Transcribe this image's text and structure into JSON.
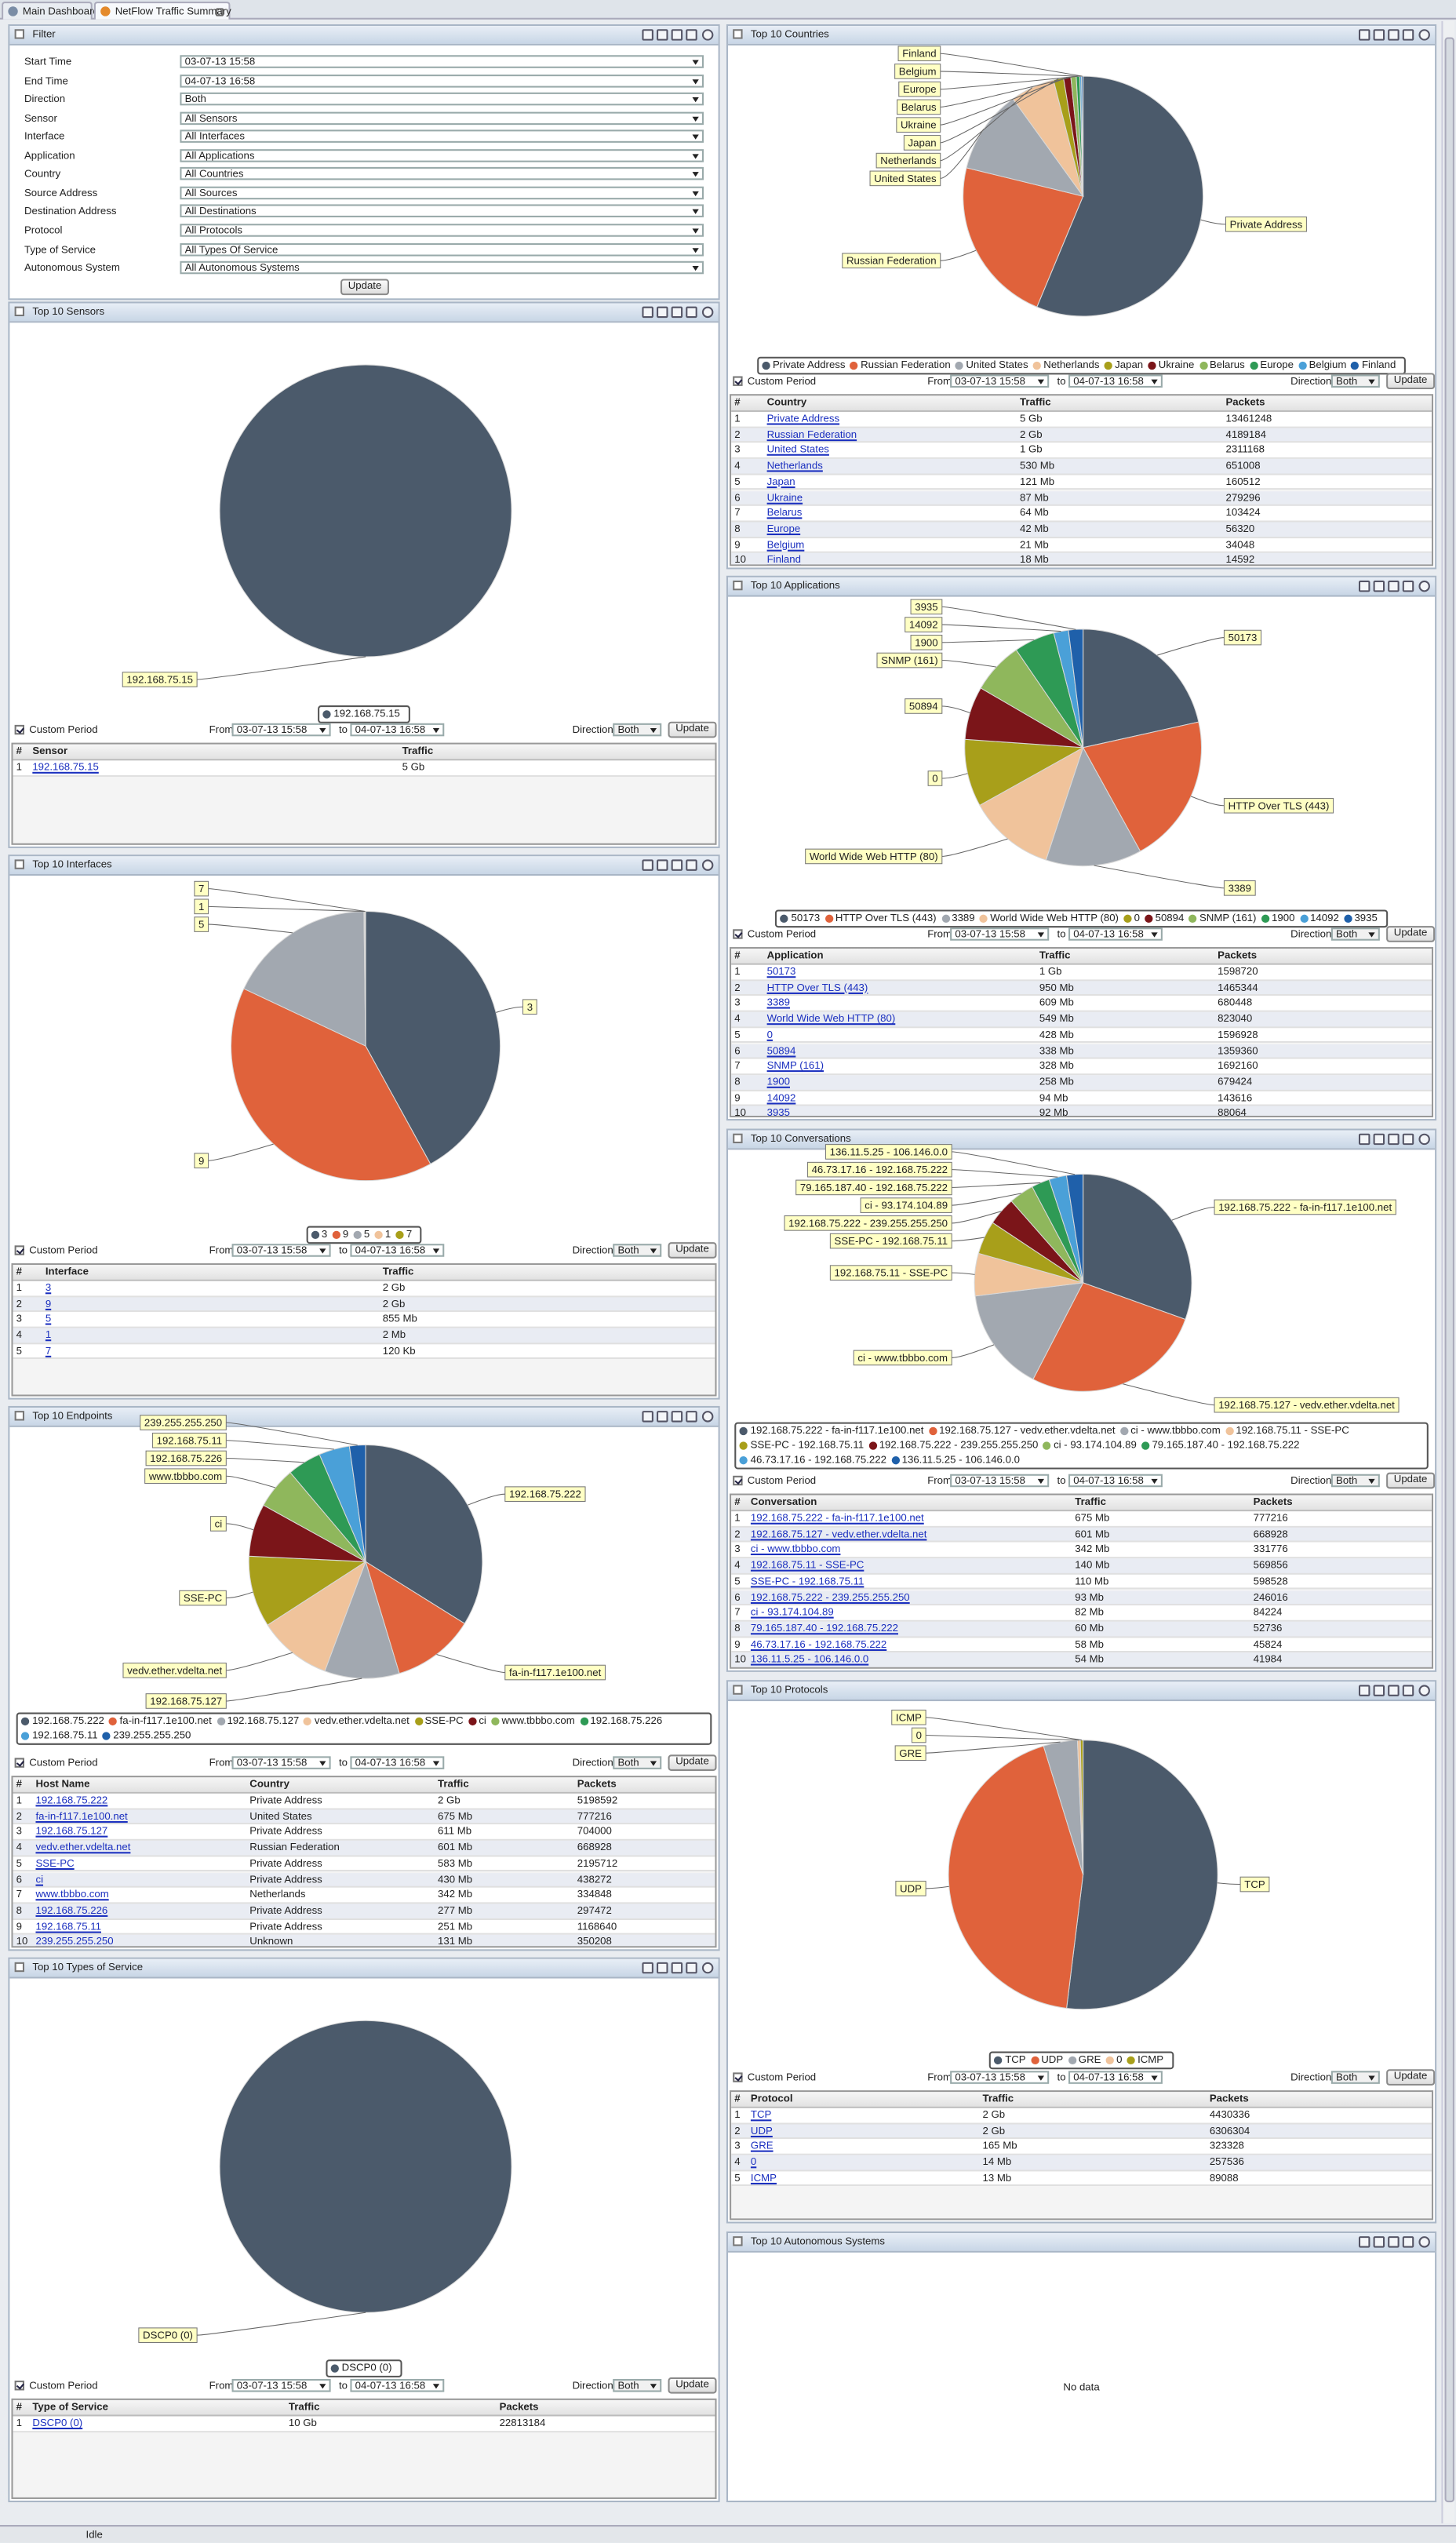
{
  "tabs": [
    "Main Dashboard",
    "NetFlow Traffic Summary"
  ],
  "status": "Idle",
  "period_controls": {
    "custom": "Custom Period",
    "from_label": "From",
    "from": "03-07-13 15:58",
    "to_label": "to",
    "to": "04-07-13 16:58",
    "direction_label": "Direction",
    "direction": "Both",
    "button": "Update"
  },
  "filter": {
    "title": "Filter",
    "rows": [
      {
        "label": "Start Time",
        "value": "03-07-13 15:58"
      },
      {
        "label": "End Time",
        "value": "04-07-13 16:58"
      },
      {
        "label": "Direction",
        "value": "Both"
      },
      {
        "label": "Sensor",
        "value": "All Sensors"
      },
      {
        "label": "Interface",
        "value": "All Interfaces"
      },
      {
        "label": "Application",
        "value": "All Applications"
      },
      {
        "label": "Country",
        "value": "All Countries"
      },
      {
        "label": "Source Address",
        "value": "All Sources"
      },
      {
        "label": "Destination Address",
        "value": "All Destinations"
      },
      {
        "label": "Protocol",
        "value": "All Protocols"
      },
      {
        "label": "Type of Service",
        "value": "All Types Of Service"
      },
      {
        "label": "Autonomous System",
        "value": "All Autonomous Systems"
      }
    ],
    "button": "Update"
  },
  "panels": [
    {
      "title": "Top 10 Sensors",
      "slices": [
        {
          "name": "192.168.75.15",
          "value": 100,
          "color": "#4b5a6b"
        }
      ],
      "table": {
        "columns": [
          "#",
          "Sensor",
          "Traffic"
        ],
        "rows": [
          [
            "1",
            "192.168.75.15",
            "5 Gb"
          ]
        ]
      }
    },
    {
      "title": "Top 10 Interfaces",
      "slices": [
        {
          "name": "3",
          "value": 42,
          "color": "#4b5a6b"
        },
        {
          "name": "9",
          "value": 40,
          "color": "#e0623b"
        },
        {
          "name": "5",
          "value": 17.8,
          "color": "#a2a8b0"
        },
        {
          "name": "1",
          "value": 0.1,
          "color": "#f0c39b"
        },
        {
          "name": "7",
          "value": 0.1,
          "color": "#a89f1a"
        }
      ],
      "table": {
        "columns": [
          "#",
          "Interface",
          "Traffic"
        ],
        "rows": [
          [
            "1",
            "3",
            "2 Gb"
          ],
          [
            "2",
            "9",
            "2 Gb"
          ],
          [
            "3",
            "5",
            "855 Mb"
          ],
          [
            "4",
            "1",
            "2 Mb"
          ],
          [
            "5",
            "7",
            "120 Kb"
          ]
        ]
      }
    },
    {
      "title": "Top 10 Endpoints",
      "slices": [
        {
          "name": "192.168.75.222",
          "value": 2000,
          "color": "#4b5a6b"
        },
        {
          "name": "fa-in-f117.1e100.net",
          "value": 675,
          "color": "#e0623b"
        },
        {
          "name": "192.168.75.127",
          "value": 611,
          "color": "#a2a8b0"
        },
        {
          "name": "vedv.ether.vdelta.net",
          "value": 601,
          "color": "#f0c39b"
        },
        {
          "name": "SSE-PC",
          "value": 583,
          "color": "#a89f1a"
        },
        {
          "name": "ci",
          "value": 430,
          "color": "#7b1519"
        },
        {
          "name": "www.tbbbo.com",
          "value": 342,
          "color": "#8fb75c"
        },
        {
          "name": "192.168.75.226",
          "value": 277,
          "color": "#2e9a55"
        },
        {
          "name": "192.168.75.11",
          "value": 251,
          "color": "#4aa0d8"
        },
        {
          "name": "239.255.255.250",
          "value": 131,
          "color": "#1f60aa"
        }
      ],
      "table": {
        "columns": [
          "#",
          "Host Name",
          "Country",
          "Traffic",
          "Packets"
        ],
        "rows": [
          [
            "1",
            "192.168.75.222",
            "Private Address",
            "2 Gb",
            "5198592"
          ],
          [
            "2",
            "fa-in-f117.1e100.net",
            "United States",
            "675 Mb",
            "777216"
          ],
          [
            "3",
            "192.168.75.127",
            "Private Address",
            "611 Mb",
            "704000"
          ],
          [
            "4",
            "vedv.ether.vdelta.net",
            "Russian Federation",
            "601 Mb",
            "668928"
          ],
          [
            "5",
            "SSE-PC",
            "Private Address",
            "583 Mb",
            "2195712"
          ],
          [
            "6",
            "ci",
            "Private Address",
            "430 Mb",
            "438272"
          ],
          [
            "7",
            "www.tbbbo.com",
            "Netherlands",
            "342 Mb",
            "334848"
          ],
          [
            "8",
            "192.168.75.226",
            "Private Address",
            "277 Mb",
            "297472"
          ],
          [
            "9",
            "192.168.75.11",
            "Private Address",
            "251 Mb",
            "1168640"
          ],
          [
            "10",
            "239.255.255.250",
            "Unknown",
            "131 Mb",
            "350208"
          ]
        ]
      }
    },
    {
      "title": "Top 10 Types of Service",
      "slices": [
        {
          "name": "DSCP0 (0)",
          "value": 100,
          "color": "#4b5a6b"
        }
      ],
      "table": {
        "columns": [
          "#",
          "Type of Service",
          "Traffic",
          "Packets"
        ],
        "rows": [
          [
            "1",
            "DSCP0 (0)",
            "10 Gb",
            "22813184"
          ]
        ]
      }
    },
    {
      "title": "Top 10 Countries",
      "slices": [
        {
          "name": "Private Address",
          "value": 5000,
          "color": "#4b5a6b"
        },
        {
          "name": "Russian Federation",
          "value": 2000,
          "color": "#e0623b"
        },
        {
          "name": "United States",
          "value": 1000,
          "color": "#a2a8b0"
        },
        {
          "name": "Netherlands",
          "value": 530,
          "color": "#f0c39b"
        },
        {
          "name": "Japan",
          "value": 121,
          "color": "#a89f1a"
        },
        {
          "name": "Ukraine",
          "value": 87,
          "color": "#7b1519"
        },
        {
          "name": "Belarus",
          "value": 64,
          "color": "#8fb75c"
        },
        {
          "name": "Europe",
          "value": 42,
          "color": "#2e9a55"
        },
        {
          "name": "Belgium",
          "value": 21,
          "color": "#4aa0d8"
        },
        {
          "name": "Finland",
          "value": 18,
          "color": "#1f60aa"
        }
      ],
      "table": {
        "columns": [
          "#",
          "Country",
          "Traffic",
          "Packets"
        ],
        "rows": [
          [
            "1",
            "Private Address",
            "5 Gb",
            "13461248"
          ],
          [
            "2",
            "Russian Federation",
            "2 Gb",
            "4189184"
          ],
          [
            "3",
            "United States",
            "1 Gb",
            "2311168"
          ],
          [
            "4",
            "Netherlands",
            "530 Mb",
            "651008"
          ],
          [
            "5",
            "Japan",
            "121 Mb",
            "160512"
          ],
          [
            "6",
            "Ukraine",
            "87 Mb",
            "279296"
          ],
          [
            "7",
            "Belarus",
            "64 Mb",
            "103424"
          ],
          [
            "8",
            "Europe",
            "42 Mb",
            "56320"
          ],
          [
            "9",
            "Belgium",
            "21 Mb",
            "34048"
          ],
          [
            "10",
            "Finland",
            "18 Mb",
            "14592"
          ]
        ]
      }
    },
    {
      "title": "Top 10 Applications",
      "slices": [
        {
          "name": "50173",
          "value": 1000,
          "color": "#4b5a6b"
        },
        {
          "name": "HTTP Over TLS (443)",
          "value": 950,
          "color": "#e0623b"
        },
        {
          "name": "3389",
          "value": 609,
          "color": "#a2a8b0"
        },
        {
          "name": "World Wide Web HTTP (80)",
          "value": 549,
          "color": "#f0c39b"
        },
        {
          "name": "0",
          "value": 428,
          "color": "#a89f1a"
        },
        {
          "name": "50894",
          "value": 338,
          "color": "#7b1519"
        },
        {
          "name": "SNMP (161)",
          "value": 328,
          "color": "#8fb75c"
        },
        {
          "name": "1900",
          "value": 258,
          "color": "#2e9a55"
        },
        {
          "name": "14092",
          "value": 94,
          "color": "#4aa0d8"
        },
        {
          "name": "3935",
          "value": 92,
          "color": "#1f60aa"
        }
      ],
      "table": {
        "columns": [
          "#",
          "Application",
          "Traffic",
          "Packets"
        ],
        "rows": [
          [
            "1",
            "50173",
            "1 Gb",
            "1598720"
          ],
          [
            "2",
            "HTTP Over TLS (443)",
            "950 Mb",
            "1465344"
          ],
          [
            "3",
            "3389",
            "609 Mb",
            "680448"
          ],
          [
            "4",
            "World Wide Web HTTP (80)",
            "549 Mb",
            "823040"
          ],
          [
            "5",
            "0",
            "428 Mb",
            "1596928"
          ],
          [
            "6",
            "50894",
            "338 Mb",
            "1359360"
          ],
          [
            "7",
            "SNMP (161)",
            "328 Mb",
            "1692160"
          ],
          [
            "8",
            "1900",
            "258 Mb",
            "679424"
          ],
          [
            "9",
            "14092",
            "94 Mb",
            "143616"
          ],
          [
            "10",
            "3935",
            "92 Mb",
            "88064"
          ]
        ]
      }
    },
    {
      "title": "Top 10 Conversations",
      "slices": [
        {
          "name": "192.168.75.222 - fa-in-f117.1e100.net",
          "value": 675,
          "color": "#4b5a6b"
        },
        {
          "name": "192.168.75.127 - vedv.ether.vdelta.net",
          "value": 601,
          "color": "#e0623b"
        },
        {
          "name": "ci - www.tbbbo.com",
          "value": 342,
          "color": "#a2a8b0"
        },
        {
          "name": "192.168.75.11 - SSE-PC",
          "value": 140,
          "color": "#f0c39b"
        },
        {
          "name": "SSE-PC - 192.168.75.11",
          "value": 110,
          "color": "#a89f1a"
        },
        {
          "name": "192.168.75.222 - 239.255.255.250",
          "value": 93,
          "color": "#7b1519"
        },
        {
          "name": "ci - 93.174.104.89",
          "value": 82,
          "color": "#8fb75c"
        },
        {
          "name": "79.165.187.40 - 192.168.75.222",
          "value": 60,
          "color": "#2e9a55"
        },
        {
          "name": "46.73.17.16 - 192.168.75.222",
          "value": 58,
          "color": "#4aa0d8"
        },
        {
          "name": "136.11.5.25 - 106.146.0.0",
          "value": 54,
          "color": "#1f60aa"
        }
      ],
      "table": {
        "columns": [
          "#",
          "Conversation",
          "Traffic",
          "Packets"
        ],
        "rows": [
          [
            "1",
            "192.168.75.222 - fa-in-f117.1e100.net",
            "675 Mb",
            "777216"
          ],
          [
            "2",
            "192.168.75.127 - vedv.ether.vdelta.net",
            "601 Mb",
            "668928"
          ],
          [
            "3",
            "ci - www.tbbbo.com",
            "342 Mb",
            "331776"
          ],
          [
            "4",
            "192.168.75.11 - SSE-PC",
            "140 Mb",
            "569856"
          ],
          [
            "5",
            "SSE-PC - 192.168.75.11",
            "110 Mb",
            "598528"
          ],
          [
            "6",
            "192.168.75.222 - 239.255.255.250",
            "93 Mb",
            "246016"
          ],
          [
            "7",
            "ci - 93.174.104.89",
            "82 Mb",
            "84224"
          ],
          [
            "8",
            "79.165.187.40 - 192.168.75.222",
            "60 Mb",
            "52736"
          ],
          [
            "9",
            "46.73.17.16 - 192.168.75.222",
            "58 Mb",
            "45824"
          ],
          [
            "10",
            "136.11.5.25 - 106.146.0.0",
            "54 Mb",
            "41984"
          ]
        ]
      }
    },
    {
      "title": "Top 10 Protocols",
      "slices": [
        {
          "name": "TCP",
          "value": 2100,
          "color": "#4b5a6b"
        },
        {
          "name": "UDP",
          "value": 1750,
          "color": "#e0623b"
        },
        {
          "name": "GRE",
          "value": 165,
          "color": "#a2a8b0"
        },
        {
          "name": "0",
          "value": 14,
          "color": "#f0c39b"
        },
        {
          "name": "ICMP",
          "value": 13,
          "color": "#a89f1a"
        }
      ],
      "table": {
        "columns": [
          "#",
          "Protocol",
          "Traffic",
          "Packets"
        ],
        "rows": [
          [
            "1",
            "TCP",
            "2 Gb",
            "4430336"
          ],
          [
            "2",
            "UDP",
            "2 Gb",
            "6306304"
          ],
          [
            "3",
            "GRE",
            "165 Mb",
            "323328"
          ],
          [
            "4",
            "0",
            "14 Mb",
            "257536"
          ],
          [
            "5",
            "ICMP",
            "13 Mb",
            "89088"
          ]
        ]
      }
    }
  ],
  "autonomous_systems": {
    "title": "Top 10 Autonomous Systems",
    "message": "No data"
  }
}
